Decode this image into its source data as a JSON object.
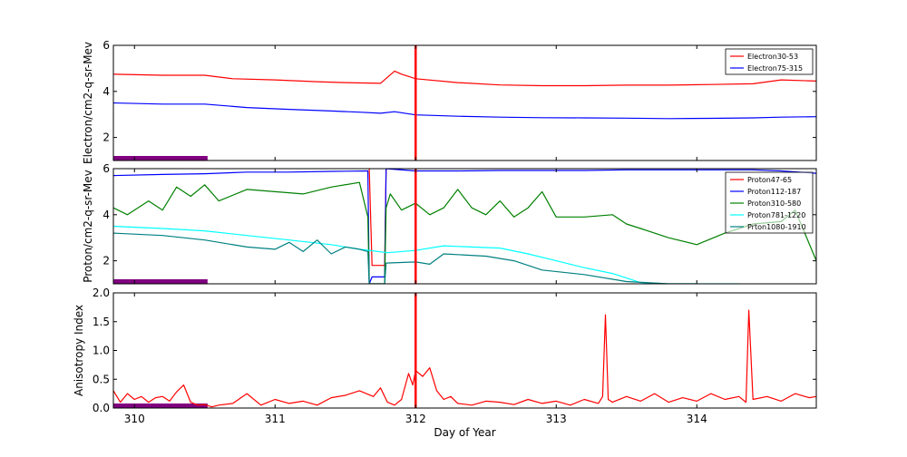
{
  "chart_data": [
    {
      "type": "line",
      "ylabel": "Electron/cm2-q-sr-Mev",
      "ylim": [
        1,
        6
      ],
      "yticks": [
        2,
        4,
        6
      ],
      "xlim": [
        309.85,
        314.85
      ],
      "marker_day": 312.0,
      "legend": "top-right",
      "series": [
        {
          "name": "Electron30-53",
          "color": "#ff0000",
          "x": [
            309.85,
            310.2,
            310.5,
            310.7,
            311.0,
            311.3,
            311.5,
            311.75,
            311.85,
            311.9,
            312.0,
            312.3,
            312.6,
            312.9,
            313.2,
            313.5,
            313.8,
            314.1,
            314.4,
            314.6,
            314.85
          ],
          "y": [
            4.75,
            4.7,
            4.7,
            4.55,
            4.5,
            4.42,
            4.38,
            4.35,
            4.88,
            4.75,
            4.55,
            4.38,
            4.28,
            4.25,
            4.25,
            4.27,
            4.27,
            4.3,
            4.33,
            4.5,
            4.45
          ]
        },
        {
          "name": "Electron75-315",
          "color": "#0000ff",
          "x": [
            309.85,
            310.2,
            310.5,
            310.8,
            311.1,
            311.4,
            311.6,
            311.75,
            311.85,
            312.0,
            312.3,
            312.6,
            312.9,
            313.2,
            313.5,
            313.8,
            314.1,
            314.4,
            314.6,
            314.85
          ],
          "y": [
            3.5,
            3.45,
            3.45,
            3.3,
            3.22,
            3.15,
            3.1,
            3.05,
            3.12,
            2.98,
            2.92,
            2.88,
            2.86,
            2.85,
            2.84,
            2.82,
            2.83,
            2.85,
            2.88,
            2.9
          ]
        }
      ],
      "bar": {
        "x_start": 309.85,
        "x_end": 310.52,
        "color": "#800080"
      }
    },
    {
      "type": "line",
      "ylabel": "Proton/cm2-q-sr-Mev",
      "ylim": [
        1,
        6
      ],
      "yticks": [
        2,
        4,
        6
      ],
      "xlim": [
        309.85,
        314.85
      ],
      "marker_day": 312.0,
      "legend": "top-right",
      "series": [
        {
          "name": "Proton47-65",
          "color": "#ff0000",
          "x": [
            311.67,
            311.69,
            311.78,
            311.79
          ],
          "y": [
            6.0,
            1.8,
            1.8,
            6.0
          ]
        },
        {
          "name": "Proton112-187",
          "color": "#0000ff",
          "x": [
            309.85,
            310.2,
            310.5,
            310.8,
            311.1,
            311.4,
            311.66,
            311.67,
            311.69,
            311.78,
            311.79,
            312.0,
            312.3,
            312.6,
            312.9,
            313.2,
            313.5,
            313.8,
            314.1,
            314.4,
            314.6,
            314.85
          ],
          "y": [
            5.7,
            5.75,
            5.78,
            5.85,
            5.85,
            5.88,
            5.9,
            1.0,
            1.3,
            1.3,
            6.0,
            5.9,
            5.9,
            5.92,
            5.92,
            5.92,
            5.95,
            5.95,
            5.95,
            5.95,
            5.9,
            5.8
          ]
        },
        {
          "name": "Proton310-580",
          "color": "#008000",
          "x": [
            309.85,
            309.95,
            310.1,
            310.2,
            310.3,
            310.4,
            310.5,
            310.6,
            310.8,
            311.0,
            311.2,
            311.4,
            311.6,
            311.66,
            311.67,
            311.78,
            311.79,
            311.82,
            311.9,
            312.0,
            312.1,
            312.2,
            312.3,
            312.4,
            312.5,
            312.6,
            312.7,
            312.8,
            312.9,
            313.0,
            313.2,
            313.4,
            313.5,
            313.6,
            313.8,
            314.0,
            314.2,
            314.4,
            314.6,
            314.7,
            314.85
          ],
          "y": [
            4.3,
            4.0,
            4.6,
            4.2,
            5.2,
            4.8,
            5.3,
            4.6,
            5.1,
            5.0,
            4.9,
            5.2,
            5.4,
            3.9,
            1.0,
            1.0,
            4.3,
            4.9,
            4.2,
            4.5,
            4.0,
            4.3,
            5.1,
            4.3,
            4.0,
            4.6,
            3.9,
            4.3,
            5.0,
            3.9,
            3.9,
            4.0,
            3.6,
            3.4,
            3.0,
            2.7,
            3.2,
            3.6,
            3.7,
            4.2,
            2.0
          ]
        },
        {
          "name": "Proton781-1220",
          "color": "#00ffff",
          "x": [
            309.85,
            310.2,
            310.5,
            310.8,
            311.1,
            311.4,
            311.6,
            311.8,
            312.0,
            312.2,
            312.4,
            312.6,
            312.8,
            313.0,
            313.2,
            313.4,
            313.6,
            313.8,
            314.0,
            314.3
          ],
          "y": [
            3.5,
            3.4,
            3.3,
            3.1,
            2.9,
            2.7,
            2.5,
            2.35,
            2.45,
            2.65,
            2.6,
            2.55,
            2.3,
            2.0,
            1.7,
            1.45,
            1.05,
            1.0,
            1.0,
            1.0
          ]
        },
        {
          "name": "Prton1080-1910",
          "color": "#008080",
          "x": [
            309.85,
            310.2,
            310.5,
            310.8,
            311.0,
            311.1,
            311.2,
            311.3,
            311.4,
            311.5,
            311.6,
            311.66,
            311.67,
            311.78,
            311.79,
            312.0,
            312.1,
            312.2,
            312.5,
            312.7,
            312.9,
            313.2,
            313.5,
            313.8,
            314.0
          ],
          "y": [
            3.2,
            3.1,
            2.9,
            2.6,
            2.5,
            2.8,
            2.4,
            2.9,
            2.3,
            2.6,
            2.5,
            2.4,
            1.0,
            1.0,
            1.9,
            1.95,
            1.85,
            2.3,
            2.2,
            2.0,
            1.6,
            1.4,
            1.1,
            1.0,
            1.0
          ]
        }
      ],
      "bar": {
        "x_start": 309.85,
        "x_end": 310.52,
        "color": "#800080"
      }
    },
    {
      "type": "line",
      "ylabel": "Anisotropy Index",
      "xlabel": "Day of Year",
      "ylim": [
        0.0,
        2.0
      ],
      "yticks": [
        "0.0",
        "0.5",
        "1.0",
        "1.5",
        "2.0"
      ],
      "xlim": [
        309.85,
        314.85
      ],
      "xticks": [
        310,
        311,
        312,
        313,
        314
      ],
      "marker_day": 312.0,
      "series": [
        {
          "color": "#ff0000",
          "x": [
            309.85,
            309.9,
            309.95,
            310.0,
            310.05,
            310.1,
            310.15,
            310.2,
            310.25,
            310.3,
            310.35,
            310.4,
            310.45,
            310.5,
            310.55,
            310.6,
            310.7,
            310.8,
            310.9,
            311.0,
            311.1,
            311.2,
            311.3,
            311.4,
            311.5,
            311.6,
            311.7,
            311.75,
            311.8,
            311.85,
            311.9,
            311.95,
            311.98,
            312.0,
            312.05,
            312.1,
            312.15,
            312.2,
            312.25,
            312.3,
            312.4,
            312.5,
            312.6,
            312.7,
            312.8,
            312.9,
            313.0,
            313.1,
            313.2,
            313.3,
            313.33,
            313.35,
            313.37,
            313.4,
            313.5,
            313.6,
            313.7,
            313.8,
            313.9,
            314.0,
            314.1,
            314.2,
            314.3,
            314.35,
            314.37,
            314.4,
            314.5,
            314.6,
            314.7,
            314.8,
            314.85
          ],
          "y": [
            0.3,
            0.1,
            0.25,
            0.15,
            0.2,
            0.1,
            0.18,
            0.2,
            0.12,
            0.28,
            0.4,
            0.1,
            0.05,
            0.06,
            0.02,
            0.05,
            0.08,
            0.25,
            0.05,
            0.15,
            0.08,
            0.12,
            0.05,
            0.18,
            0.22,
            0.3,
            0.2,
            0.35,
            0.1,
            0.05,
            0.15,
            0.6,
            0.4,
            0.65,
            0.55,
            0.7,
            0.3,
            0.15,
            0.2,
            0.08,
            0.05,
            0.12,
            0.1,
            0.06,
            0.15,
            0.08,
            0.12,
            0.05,
            0.15,
            0.08,
            0.2,
            1.62,
            0.15,
            0.1,
            0.2,
            0.12,
            0.25,
            0.1,
            0.18,
            0.12,
            0.25,
            0.15,
            0.2,
            0.1,
            1.7,
            0.15,
            0.2,
            0.12,
            0.25,
            0.18,
            0.2
          ]
        }
      ],
      "bar": {
        "x_start": 309.85,
        "x_end": 310.52,
        "color": "#800080"
      }
    }
  ],
  "legend_entries": {
    "panel0": [
      "Electron30-53",
      "Electron75-315"
    ],
    "panel1": [
      "Proton47-65",
      "Proton112-187",
      "Proton310-580",
      "Proton781-1220",
      "Prton1080-1910"
    ]
  }
}
